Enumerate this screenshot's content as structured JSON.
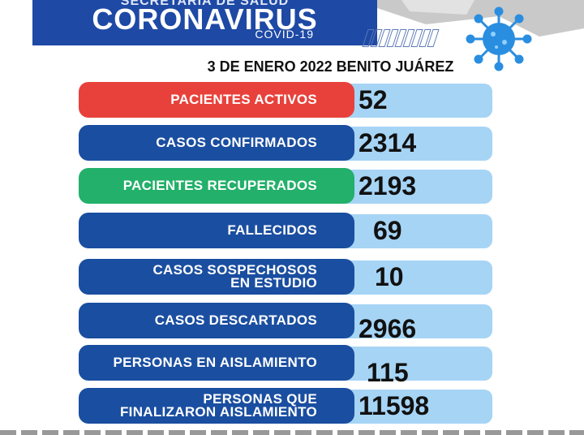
{
  "header": {
    "top_line": "SECRETARÍA DE SALUD",
    "title": "CORONAVIRUS",
    "subtitle": "COVID-19"
  },
  "date_line": "3 DE ENERO 2022 BENITO JUÁREZ",
  "stats": [
    {
      "label": "PACIENTES ACTIVOS",
      "value": "52"
    },
    {
      "label": "CASOS CONFIRMADOS",
      "value": "2314"
    },
    {
      "label": "PACIENTES RECUPERADOS",
      "value": "2193"
    },
    {
      "label": "FALLECIDOS",
      "value": "69"
    },
    {
      "label_line1": "CASOS SOSPECHOSOS",
      "label_line2": "EN ESTUDIO",
      "value": "10"
    },
    {
      "label": "CASOS DESCARTADOS",
      "value": "2966"
    },
    {
      "label": "PERSONAS EN AISLAMIENTO",
      "value": "115"
    },
    {
      "label_line1": "PERSONAS QUE",
      "label_line2": "FINALIZARON AISLAMIENTO",
      "value": "11598"
    }
  ],
  "colors": {
    "header_blue": "#1e49a5",
    "label_blue": "#1a4ea0",
    "label_red": "#e8413b",
    "label_green": "#23b06a",
    "value_bg": "#a6d4f5",
    "virus_blue": "#2a8ee0"
  },
  "icons": [
    "virus-icon"
  ]
}
